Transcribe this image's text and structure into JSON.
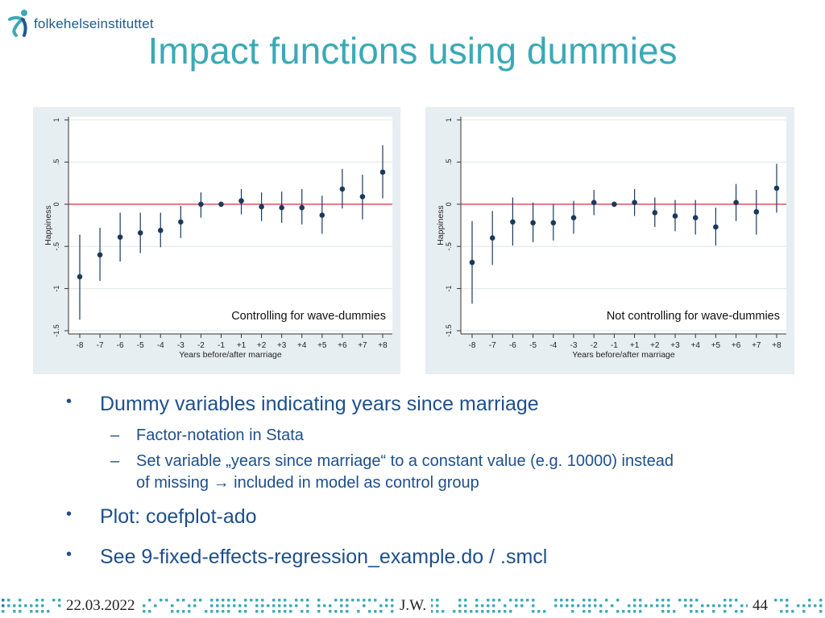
{
  "logo": {
    "text": "folkehelseinstituttet",
    "icon": "fhi-logo-icon",
    "color": "#3aa9b7"
  },
  "title": "Impact functions using dummies",
  "chart_data": [
    {
      "type": "scatter",
      "subtype": "coefficient-plot-with-confidence-intervals",
      "annotation": "Controlling for wave-dummies",
      "xlabel": "Years before/after marriage",
      "ylabel": "Happiness",
      "categories": [
        "-8",
        "-7",
        "-6",
        "-5",
        "-4",
        "-3",
        "-2",
        "-1",
        "+1",
        "+2",
        "+3",
        "+4",
        "+5",
        "+6",
        "+7",
        "+8"
      ],
      "yticks": [
        1,
        0.5,
        0,
        -0.5,
        -1,
        -1.5
      ],
      "ytick_labels": [
        "1",
        ".5",
        "0",
        "-.5",
        "-1",
        "-1.5"
      ],
      "ylim": [
        -1.5,
        1
      ],
      "reference_line": 0,
      "reference_color": "#d0202e",
      "point_color": "#1a3a5c",
      "grid": true,
      "values": [
        -0.86,
        -0.6,
        -0.39,
        -0.34,
        -0.31,
        -0.21,
        0.0,
        0.0,
        0.04,
        -0.03,
        -0.04,
        -0.04,
        -0.13,
        0.18,
        0.09,
        0.38
      ],
      "ci_low": [
        -1.37,
        -0.91,
        -0.68,
        -0.58,
        -0.51,
        -0.4,
        -0.16,
        0.0,
        -0.12,
        -0.2,
        -0.22,
        -0.24,
        -0.35,
        -0.05,
        -0.18,
        0.07
      ],
      "ci_high": [
        -0.36,
        -0.28,
        -0.1,
        -0.1,
        -0.1,
        -0.02,
        0.14,
        0.0,
        0.18,
        0.14,
        0.15,
        0.18,
        0.1,
        0.42,
        0.35,
        0.7
      ]
    },
    {
      "type": "scatter",
      "subtype": "coefficient-plot-with-confidence-intervals",
      "annotation": "Not controlling for wave-dummies",
      "xlabel": "Years before/after marriage",
      "ylabel": "Happiness",
      "categories": [
        "-8",
        "-7",
        "-6",
        "-5",
        "-4",
        "-3",
        "-2",
        "-1",
        "+1",
        "+2",
        "+3",
        "+4",
        "+5",
        "+6",
        "+7",
        "+8"
      ],
      "yticks": [
        1,
        0.5,
        0,
        -0.5,
        -1,
        -1.5
      ],
      "ytick_labels": [
        "1",
        ".5",
        "0",
        "-.5",
        "-1",
        "-1.5"
      ],
      "ylim": [
        -1.5,
        1
      ],
      "reference_line": 0,
      "reference_color": "#d0202e",
      "point_color": "#1a3a5c",
      "grid": true,
      "values": [
        -0.69,
        -0.4,
        -0.21,
        -0.22,
        -0.22,
        -0.16,
        0.02,
        0.0,
        0.02,
        -0.1,
        -0.14,
        -0.16,
        -0.27,
        0.02,
        -0.09,
        0.19
      ],
      "ci_low": [
        -1.18,
        -0.72,
        -0.49,
        -0.45,
        -0.43,
        -0.35,
        -0.13,
        0.0,
        -0.14,
        -0.27,
        -0.32,
        -0.36,
        -0.49,
        -0.2,
        -0.36,
        -0.1
      ],
      "ci_high": [
        -0.2,
        -0.08,
        0.08,
        0.02,
        0.0,
        0.04,
        0.17,
        0.0,
        0.18,
        0.08,
        0.05,
        0.05,
        -0.04,
        0.24,
        0.17,
        0.48
      ]
    }
  ],
  "bullets": [
    {
      "text": "Dummy variables indicating years since marriage",
      "sub": [
        {
          "lines": [
            "Factor-notation in Stata"
          ]
        },
        {
          "lines": [
            "Set variable „years since marriage“ to a constant value (e.g. 10000) instead",
            "of missing → included in model as control group"
          ]
        }
      ]
    },
    {
      "text": "Plot: coefplot-ado"
    },
    {
      "text": "See 9-fixed-effects-regression_example.do / .smcl"
    }
  ],
  "bullet_char": "•",
  "dash_char": "–",
  "footer": {
    "date": "22.03.2022",
    "author": "J.W.",
    "page": "44"
  },
  "colors": {
    "accent": "#3aa9b7",
    "text": "#1e4f8a",
    "panel_bg": "#e7eef2"
  }
}
